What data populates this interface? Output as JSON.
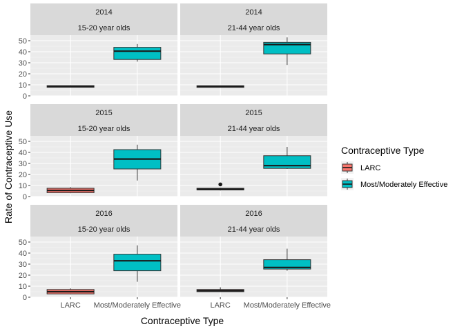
{
  "chart_data": {
    "type": "boxplot",
    "xlabel": "Contraceptive Type",
    "ylabel": "Rate of Contraceptive Use",
    "categories": [
      "LARC",
      "Most/Moderately Effective"
    ],
    "ylim": [
      0,
      55
    ],
    "yticks": [
      0,
      10,
      20,
      30,
      40,
      50
    ],
    "legend": {
      "title": "Contraceptive Type",
      "position": "right",
      "entries": [
        {
          "label": "LARC",
          "color": "#F8766D"
        },
        {
          "label": "Most/Moderately Effective",
          "color": "#00BFC4"
        }
      ]
    },
    "facets": [
      {
        "year": "2014",
        "age_group": "15-20 year olds",
        "boxes": [
          {
            "category": "LARC",
            "min": 7.5,
            "q1": 7.8,
            "median": 8.4,
            "q3": 9.3,
            "max": 9.6,
            "outliers": []
          },
          {
            "category": "Most/Moderately Effective",
            "min": 31,
            "q1": 33,
            "median": 40.5,
            "q3": 44,
            "max": 47,
            "outliers": []
          }
        ]
      },
      {
        "year": "2014",
        "age_group": "21-44 year olds",
        "boxes": [
          {
            "category": "LARC",
            "min": 7.5,
            "q1": 7.7,
            "median": 8.5,
            "q3": 9.2,
            "max": 9.3,
            "outliers": []
          },
          {
            "category": "Most/Moderately Effective",
            "min": 28,
            "q1": 38,
            "median": 46.5,
            "q3": 48.5,
            "max": 53,
            "outliers": []
          }
        ]
      },
      {
        "year": "2015",
        "age_group": "15-20 year olds",
        "boxes": [
          {
            "category": "LARC",
            "min": 3,
            "q1": 3.5,
            "median": 5.5,
            "q3": 7.5,
            "max": 8.5,
            "outliers": []
          },
          {
            "category": "Most/Moderately Effective",
            "min": 14.5,
            "q1": 25,
            "median": 34,
            "q3": 42.5,
            "max": 47,
            "outliers": []
          }
        ]
      },
      {
        "year": "2015",
        "age_group": "21-44 year olds",
        "boxes": [
          {
            "category": "LARC",
            "min": 5.5,
            "q1": 6,
            "median": 6.5,
            "q3": 7.5,
            "max": 8,
            "outliers": [
              11
            ]
          },
          {
            "category": "Most/Moderately Effective",
            "min": 25,
            "q1": 25.5,
            "median": 28,
            "q3": 37,
            "max": 45,
            "outliers": []
          }
        ]
      },
      {
        "year": "2016",
        "age_group": "15-20 year olds",
        "boxes": [
          {
            "category": "LARC",
            "min": 2.5,
            "q1": 3,
            "median": 5,
            "q3": 7,
            "max": 8,
            "outliers": []
          },
          {
            "category": "Most/Moderately Effective",
            "min": 14,
            "q1": 24,
            "median": 33,
            "q3": 39,
            "max": 47,
            "outliers": []
          }
        ]
      },
      {
        "year": "2016",
        "age_group": "21-44 year olds",
        "boxes": [
          {
            "category": "LARC",
            "min": 5,
            "q1": 5,
            "median": 6,
            "q3": 7,
            "max": 9,
            "outliers": []
          },
          {
            "category": "Most/Moderately Effective",
            "min": 24,
            "q1": 25.5,
            "median": 27,
            "q3": 34,
            "max": 44,
            "outliers": []
          }
        ]
      }
    ]
  }
}
